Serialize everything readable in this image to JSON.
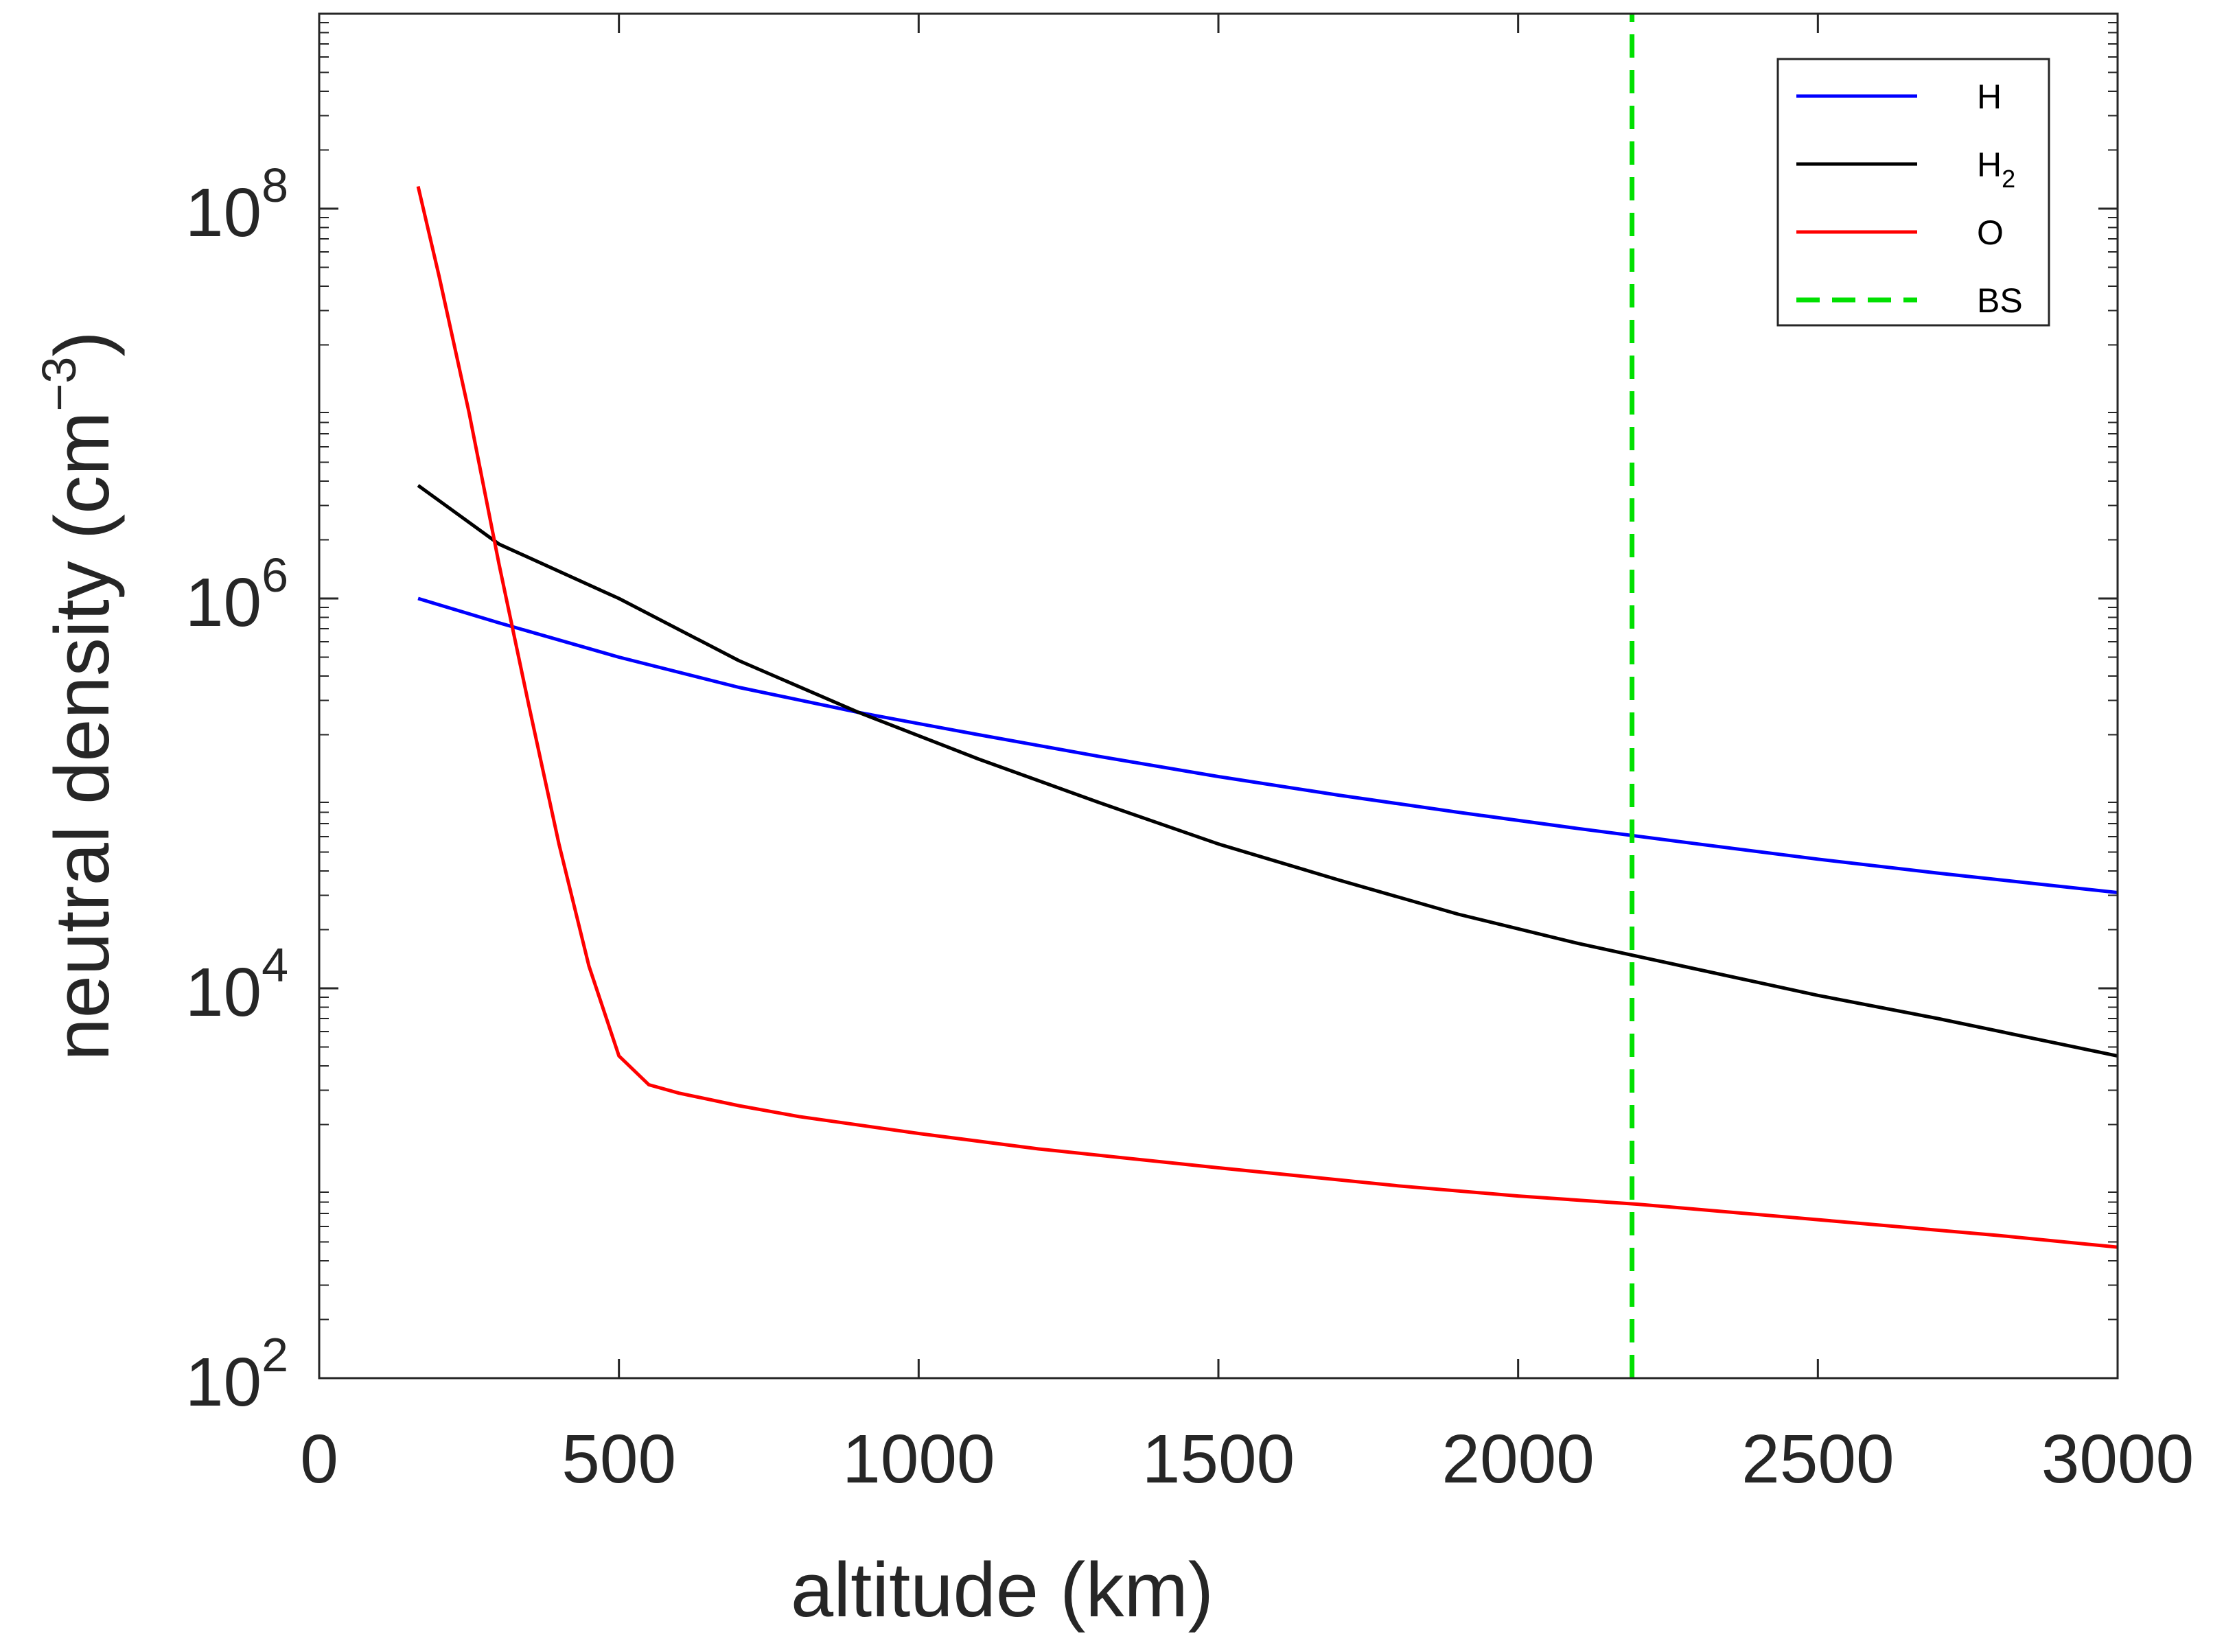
{
  "chart_data": {
    "type": "line",
    "title": "",
    "xlabel": "altitude (km)",
    "ylabel": {
      "text": "neutral density (cm",
      "superscript": "−3",
      "close": ")"
    },
    "xlim": [
      0,
      3000
    ],
    "ylim": [
      100,
      1000000000
    ],
    "yscale": "log",
    "x_ticks": [
      0,
      500,
      1000,
      1500,
      2000,
      2500,
      3000
    ],
    "y_ticks": [
      {
        "value": 100,
        "base": "10",
        "exp": "2"
      },
      {
        "value": 10000,
        "base": "10",
        "exp": "4"
      },
      {
        "value": 1000000,
        "base": "10",
        "exp": "6"
      },
      {
        "value": 100000000,
        "base": "10",
        "exp": "8"
      }
    ],
    "grid": false,
    "legend_position": "top-right",
    "series": [
      {
        "name": "H",
        "subscript": "",
        "color": "#0000ff",
        "dash": "solid",
        "x": [
          165,
          300,
          500,
          700,
          900,
          1100,
          1300,
          1500,
          1700,
          1900,
          2100,
          2300,
          2500,
          2700,
          3000
        ],
        "y": [
          1000000,
          750000,
          500000,
          350000,
          260000,
          200000,
          155000,
          122000,
          98000,
          80000,
          66000,
          55000,
          46000,
          39000,
          31000
        ]
      },
      {
        "name": "H",
        "subscript": "2",
        "color": "#000000",
        "dash": "solid",
        "x": [
          165,
          300,
          500,
          700,
          900,
          1100,
          1300,
          1500,
          1700,
          1900,
          2100,
          2300,
          2500,
          2700,
          3000
        ],
        "y": [
          3800000,
          1900000,
          1000000,
          480000,
          260000,
          150000,
          90000,
          55000,
          36000,
          24000,
          17000,
          12500,
          9200,
          7000,
          4500
        ]
      },
      {
        "name": "O",
        "subscript": "",
        "color": "#ff0000",
        "dash": "solid",
        "x": [
          165,
          200,
          250,
          300,
          350,
          400,
          450,
          500,
          550,
          600,
          700,
          800,
          1000,
          1200,
          1500,
          1800,
          2000,
          2200,
          2500,
          2800,
          3000
        ],
        "y": [
          130000000,
          45000000,
          9000000,
          1500000,
          280000,
          55000,
          13000,
          4500,
          3200,
          2900,
          2500,
          2200,
          1800,
          1500,
          1200,
          970,
          860,
          780,
          650,
          540,
          470
        ]
      },
      {
        "name": "BS",
        "subscript": "",
        "color": "#00e000",
        "dash": "dashed",
        "x": [
          2190,
          2190
        ],
        "y": [
          100,
          1000000000
        ]
      }
    ]
  }
}
